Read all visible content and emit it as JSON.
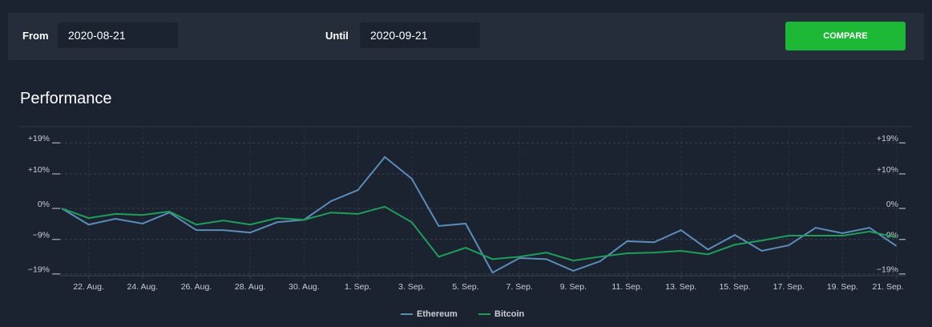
{
  "form": {
    "from_label": "From",
    "from_value": "2020-08-21",
    "until_label": "Until",
    "until_value": "2020-09-21",
    "button": "COMPARE"
  },
  "chart_data": {
    "type": "line",
    "title": "Performance",
    "categories": [
      null,
      "22. Aug.",
      null,
      "24. Aug.",
      null,
      "26. Aug.",
      null,
      "28. Aug.",
      null,
      "30. Aug.",
      null,
      "1. Sep.",
      null,
      "3. Sep.",
      null,
      "5. Sep.",
      null,
      "7. Sep.",
      null,
      "9. Sep.",
      null,
      "11. Sep.",
      null,
      "13. Sep.",
      null,
      "15. Sep.",
      null,
      "17. Sep.",
      null,
      "19. Sep.",
      null,
      "21. Sep."
    ],
    "series": [
      {
        "name": "Ethereum",
        "color": "#5b8db8",
        "values": [
          0,
          -4.7,
          -3.0,
          -4.4,
          -1.2,
          -6.3,
          -6.3,
          -7.0,
          -4.0,
          -3.3,
          2.1,
          5.3,
          14.9,
          8.6,
          -5.1,
          -4.4,
          -18.6,
          -14.4,
          -14.7,
          -18.1,
          -15.3,
          -9.5,
          -9.8,
          -6.3,
          -11.9,
          -7.7,
          -12.3,
          -10.7,
          -5.6,
          -7.2,
          -5.6,
          -10.9
        ]
      },
      {
        "name": "Bitcoin",
        "color": "#1f9e5a",
        "values": [
          0,
          -2.8,
          -1.6,
          -1.9,
          -0.9,
          -4.7,
          -3.5,
          -4.7,
          -2.8,
          -3.3,
          -1.2,
          -1.6,
          0.5,
          -4.0,
          -14.0,
          -11.4,
          -14.7,
          -14.0,
          -12.8,
          -15.1,
          -14.0,
          -13.0,
          -12.8,
          -12.3,
          -13.3,
          -10.5,
          -9.3,
          -7.9,
          -7.9,
          -7.9,
          -6.7,
          -8.4
        ]
      }
    ],
    "ylim": [
      -19.5,
      23.7
    ],
    "yticks": [
      {
        "value": 19,
        "label": "+19%"
      },
      {
        "value": 10,
        "label": "+10%"
      },
      {
        "value": 0,
        "label": "0%"
      },
      {
        "value": -9,
        "label": "−9%"
      },
      {
        "value": -19,
        "label": "−19%"
      }
    ],
    "grid": true,
    "legend": "bottom"
  }
}
